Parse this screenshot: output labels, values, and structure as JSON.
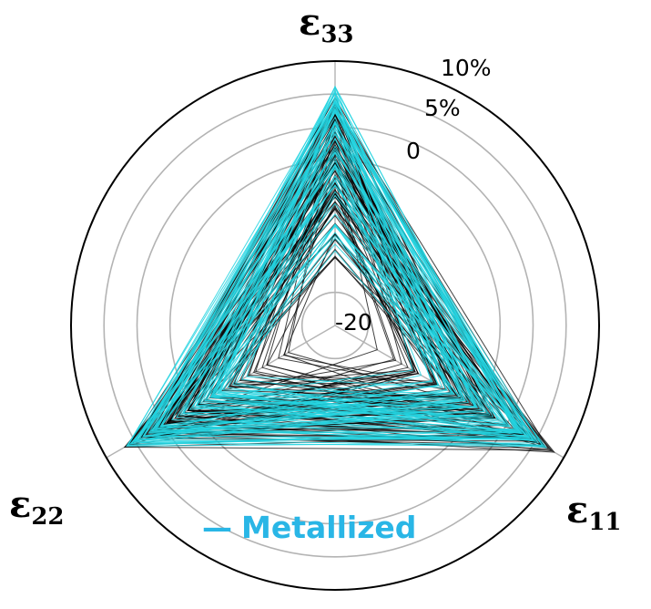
{
  "chart_data": {
    "type": "radar",
    "axes": [
      "ε33",
      "ε11",
      "ε22"
    ],
    "axis_labels": [
      {
        "base": "ε",
        "sub": "33"
      },
      {
        "base": "ε",
        "sub": "11"
      },
      {
        "base": "ε",
        "sub": "22"
      }
    ],
    "radial_ticks": [
      {
        "value": -20,
        "label": "-20"
      },
      {
        "value": 0,
        "label": "0"
      },
      {
        "value": 5,
        "label": "5%"
      },
      {
        "value": 10,
        "label": "10%"
      }
    ],
    "rlim": [
      -25,
      15
    ],
    "grid": true,
    "series_groups": [
      {
        "name": "",
        "color": "#000000",
        "count": 90,
        "range_min": [
          -16,
          -18,
          -20
        ],
        "range_max": [
          10,
          13.5,
          12
        ]
      },
      {
        "name": "Metallized",
        "color": "#22d3e0",
        "count": 70,
        "range_min": [
          -15,
          -14,
          -13
        ],
        "range_max": [
          11.5,
          12,
          11.5
        ]
      }
    ],
    "legend": {
      "label": "Metallized",
      "marker": "—",
      "color": "#29b6e6",
      "placement": "bottom-center"
    }
  }
}
